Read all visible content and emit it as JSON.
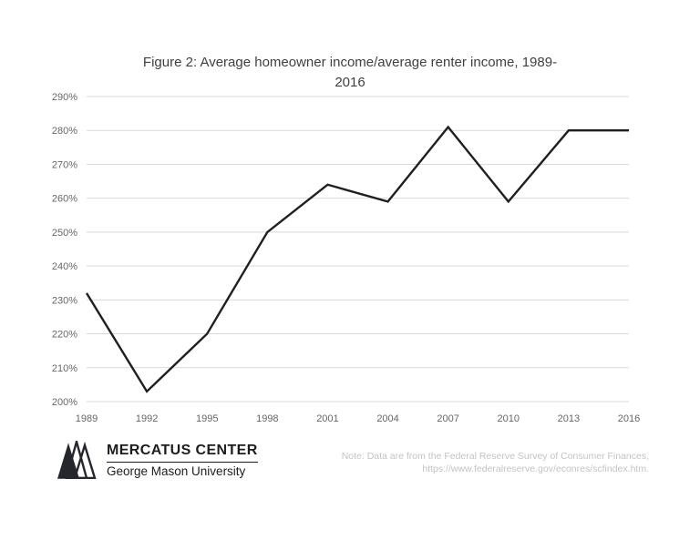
{
  "figure": {
    "title_line1": "Figure 2: Average homeowner income/average renter income, 1989-",
    "title_line2": "2016"
  },
  "chart_data": {
    "type": "line",
    "title": "Figure 2: Average homeowner income/average renter income, 1989-2016",
    "categories": [
      "1989",
      "1992",
      "1995",
      "1998",
      "2001",
      "2004",
      "2007",
      "2010",
      "2013",
      "2016"
    ],
    "values": [
      232,
      203,
      220,
      250,
      264,
      259,
      281,
      259,
      280,
      280
    ],
    "xlabel": "",
    "ylabel": "",
    "ylim": [
      200,
      290
    ],
    "ytick_step": 10,
    "ytick_suffix": "%",
    "grid": "horizontal",
    "legend": "none",
    "line_color": "#1f1f1f",
    "grid_color": "#d9d9d9"
  },
  "footer": {
    "logo_title": "MERCATUS CENTER",
    "logo_subtitle": "George Mason University",
    "note_line1": "Note: Data are from the Federal Reserve Survey of Consumer Finances,",
    "note_line2": "https://www.federalreserve.gov/econres/scfindex.htm."
  }
}
